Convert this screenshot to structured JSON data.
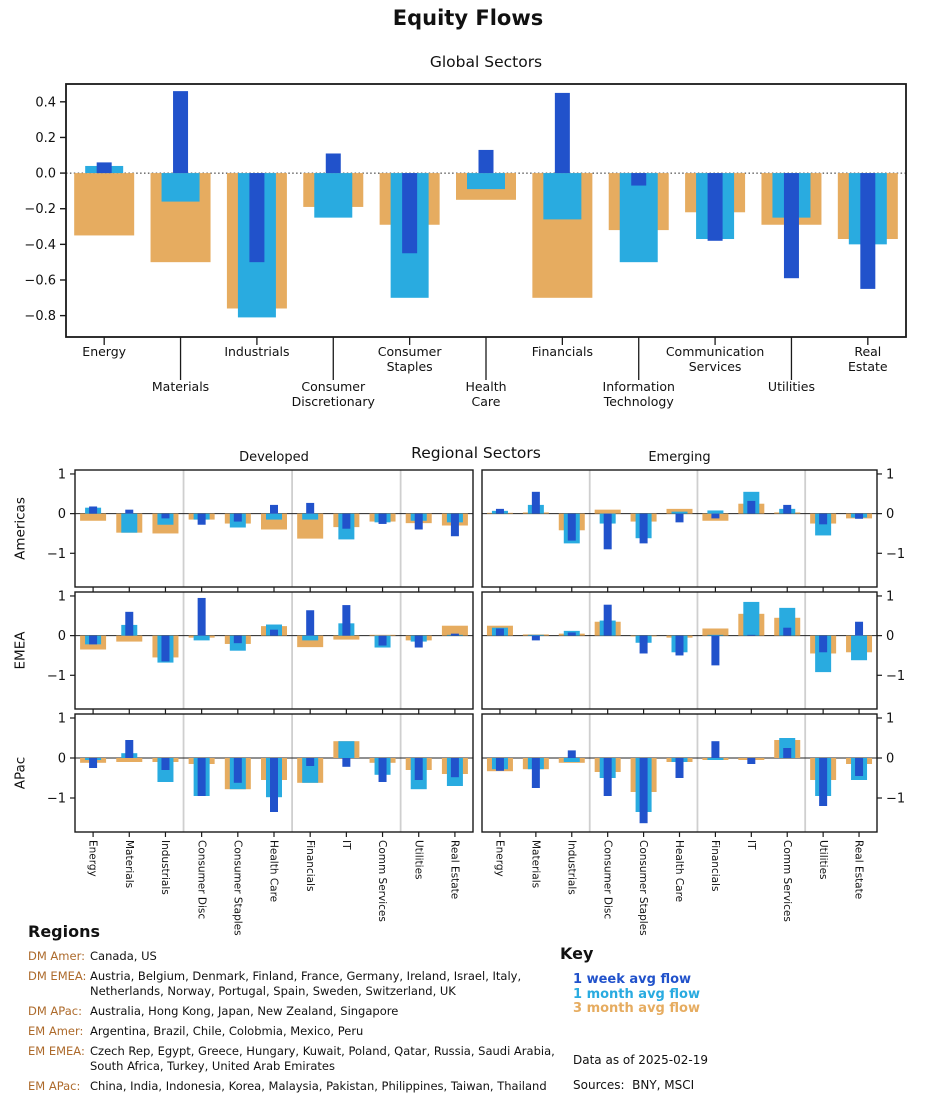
{
  "title": "Equity Flows",
  "colors": {
    "week1": "#2152cb",
    "month1": "#29abe0",
    "month3": "#e6ac60",
    "accent_brown": "#ad6a2b",
    "axis": "#1a1a1a",
    "separator_gray": "#cfcfcf"
  },
  "chart_data": [
    {
      "type": "bar",
      "title": "Global Sectors",
      "categories": [
        "Energy",
        "Materials",
        "Industrials",
        "Consumer Discretionary",
        "Consumer Staples",
        "Health Care",
        "Financials",
        "Information Technology",
        "Communication Services",
        "Utilities",
        "Real Estate"
      ],
      "label_lines": [
        [
          "Energy"
        ],
        [
          "Materials"
        ],
        [
          "Industrials"
        ],
        [
          "Consumer",
          "Discretionary"
        ],
        [
          "Consumer",
          "Staples"
        ],
        [
          "Health",
          "Care"
        ],
        [
          "Financials"
        ],
        [
          "Information",
          "Technology"
        ],
        [
          "Communication",
          "Services"
        ],
        [
          "Utilities"
        ],
        [
          "Real",
          "Estate"
        ]
      ],
      "ylim": [
        -0.92,
        0.5
      ],
      "yticks": [
        0.4,
        0.2,
        0.0,
        -0.2,
        -0.4,
        -0.6,
        -0.8
      ],
      "zero_line": "dotted",
      "legend_position": "none",
      "grid": false,
      "series": [
        {
          "key": "week1",
          "name": "1 week avg flow",
          "values": [
            0.06,
            0.46,
            -0.5,
            0.11,
            -0.45,
            0.13,
            0.45,
            -0.07,
            -0.38,
            -0.59,
            -0.65
          ]
        },
        {
          "key": "month1",
          "name": "1 month avg flow",
          "values": [
            0.04,
            -0.16,
            -0.81,
            -0.25,
            -0.7,
            -0.09,
            -0.26,
            -0.5,
            -0.37,
            -0.25,
            -0.4
          ]
        },
        {
          "key": "month3",
          "name": "3 month avg flow",
          "values": [
            -0.35,
            -0.5,
            -0.76,
            -0.19,
            -0.29,
            -0.15,
            -0.7,
            -0.32,
            -0.22,
            -0.29,
            -0.37
          ]
        }
      ]
    },
    {
      "type": "bar-grid",
      "title": "Regional Sectors",
      "col_titles": [
        "Developed",
        "Emerging"
      ],
      "row_titles": [
        "Americas",
        "EMEA",
        "APac"
      ],
      "categories": [
        "Energy",
        "Materials",
        "Industrials",
        "Consumer Disc",
        "Consumer Staples",
        "Health Care",
        "Financials",
        "IT",
        "Comm Services",
        "Utilities",
        "Real Estate"
      ],
      "ylim": [
        -1.85,
        1.1
      ],
      "yticks": [
        1,
        0,
        -1
      ],
      "separators_after": [
        3,
        6,
        9
      ],
      "panels": [
        {
          "row": 0,
          "col": 0,
          "name": "Americas Developed",
          "week1": [
            0.18,
            0.1,
            -0.12,
            -0.28,
            -0.2,
            0.22,
            0.27,
            -0.38,
            -0.26,
            -0.4,
            -0.57
          ],
          "month1": [
            0.15,
            -0.48,
            -0.28,
            -0.15,
            -0.35,
            -0.15,
            -0.15,
            -0.65,
            -0.22,
            -0.18,
            -0.22
          ],
          "month3": [
            -0.18,
            -0.48,
            -0.5,
            -0.15,
            -0.25,
            -0.4,
            -0.63,
            -0.34,
            -0.2,
            -0.24,
            -0.3
          ]
        },
        {
          "row": 0,
          "col": 1,
          "name": "Americas Emerging",
          "week1": [
            0.12,
            0.55,
            -0.68,
            -0.9,
            -0.75,
            -0.22,
            -0.12,
            0.32,
            0.22,
            -0.27,
            -0.13
          ],
          "month1": [
            0.07,
            0.22,
            -0.75,
            -0.25,
            -0.62,
            0.05,
            0.08,
            0.55,
            0.12,
            -0.55,
            -0.1
          ],
          "month3": [
            0.02,
            0.03,
            -0.42,
            0.1,
            -0.2,
            0.12,
            -0.18,
            0.25,
            0.03,
            -0.25,
            -0.12
          ]
        },
        {
          "row": 1,
          "col": 0,
          "name": "EMEA Developed",
          "week1": [
            -0.22,
            0.6,
            -0.65,
            0.95,
            -0.19,
            0.15,
            0.64,
            0.77,
            -0.25,
            -0.3,
            0.05
          ],
          "month1": [
            -0.22,
            0.27,
            -0.68,
            -0.12,
            -0.38,
            0.28,
            -0.12,
            0.31,
            -0.3,
            -0.15,
            0.02
          ],
          "month3": [
            -0.35,
            -0.15,
            -0.55,
            -0.05,
            -0.21,
            0.24,
            -0.29,
            -0.1,
            0.02,
            -0.12,
            0.25
          ]
        },
        {
          "row": 1,
          "col": 1,
          "name": "EMEA Emerging",
          "week1": [
            0.18,
            -0.12,
            0.08,
            0.78,
            -0.45,
            -0.5,
            -0.75,
            0.02,
            0.2,
            -0.42,
            0.35
          ],
          "month1": [
            0.2,
            0.02,
            0.12,
            0.38,
            -0.18,
            -0.42,
            0.02,
            0.85,
            0.7,
            -0.92,
            -0.62
          ],
          "month3": [
            0.25,
            0.03,
            0.05,
            0.35,
            -0.02,
            -0.05,
            0.18,
            0.55,
            0.45,
            -0.45,
            -0.42
          ]
        },
        {
          "row": 2,
          "col": 0,
          "name": "APac Developed",
          "week1": [
            -0.25,
            0.45,
            -0.3,
            -0.95,
            -0.62,
            -1.35,
            -0.2,
            -0.22,
            -0.6,
            -0.55,
            -0.48
          ],
          "month1": [
            -0.05,
            0.12,
            -0.6,
            -0.95,
            -0.78,
            -0.98,
            -0.62,
            0.42,
            -0.42,
            -0.78,
            -0.7
          ],
          "month3": [
            -0.12,
            -0.1,
            -0.1,
            -0.15,
            -0.78,
            -0.55,
            -0.62,
            0.42,
            -0.12,
            -0.3,
            -0.4
          ]
        },
        {
          "row": 2,
          "col": 1,
          "name": "APac Emerging",
          "week1": [
            -0.32,
            -0.75,
            0.19,
            -0.95,
            -1.63,
            -0.5,
            0.42,
            -0.15,
            0.25,
            -1.2,
            -0.45
          ],
          "month1": [
            -0.28,
            -0.28,
            -0.1,
            -0.5,
            -1.35,
            -0.1,
            -0.05,
            0.0,
            0.5,
            -0.95,
            -0.55
          ],
          "month3": [
            -0.33,
            -0.28,
            -0.12,
            -0.35,
            -0.85,
            -0.1,
            -0.05,
            -0.05,
            0.45,
            -0.55,
            -0.15
          ]
        }
      ]
    }
  ],
  "regions": {
    "heading": "Regions",
    "rows": [
      {
        "label": "DM Amer:",
        "value": "Canada, US"
      },
      {
        "label": "DM EMEA:",
        "value": "Austria, Belgium, Denmark, Finland, France, Germany, Ireland, Israel, Italy, Netherlands, Norway, Portugal, Spain, Sweden, Switzerland, UK"
      },
      {
        "label": "DM APac:",
        "value": "Australia, Hong Kong, Japan, New Zealand, Singapore"
      },
      {
        "label": "EM Amer:",
        "value": "Argentina, Brazil, Chile, Colobmia, Mexico, Peru"
      },
      {
        "label": "EM EMEA:",
        "value": "Czech Rep, Egypt, Greece, Hungary, Kuwait, Poland, Qatar, Russia, Saudi Arabia, South Africa, Turkey, United Arab Emirates"
      },
      {
        "label": "EM APac:",
        "value": "China, India, Indonesia, Korea, Malaysia, Pakistan, Philippines, Taiwan, Thailand"
      }
    ]
  },
  "key": {
    "heading": "Key",
    "items": [
      {
        "label": "1 week avg flow",
        "color_key": "week1"
      },
      {
        "label": "1 month avg flow",
        "color_key": "month1"
      },
      {
        "label": "3 month avg flow",
        "color_key": "month3"
      }
    ],
    "data_as_of": "Data as of 2025-02-19",
    "sources": "Sources:  BNY, MSCI"
  }
}
